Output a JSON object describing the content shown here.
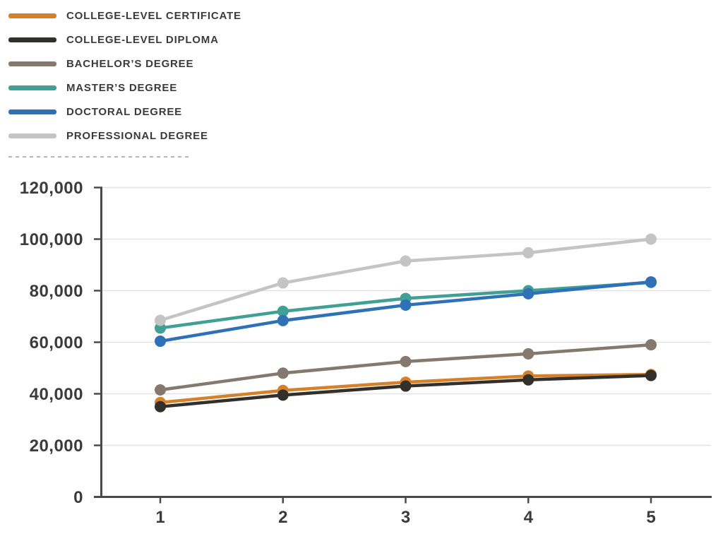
{
  "legend": {
    "items": [
      {
        "label": "COLLEGE-LEVEL CERTIFICATE",
        "color": "#D5812A"
      },
      {
        "label": "COLLEGE-LEVEL DIPLOMA",
        "color": "#33302C"
      },
      {
        "label": "BACHELOR’S DEGREE",
        "color": "#85796E"
      },
      {
        "label": "MASTER’S DEGREE",
        "color": "#3FA093"
      },
      {
        "label": "DOCTORAL DEGREE",
        "color": "#2E71B6"
      },
      {
        "label": "PROFESSIONAL DEGREE",
        "color": "#C4C4C4"
      }
    ]
  },
  "chart_data": {
    "type": "line",
    "x": [
      1,
      2,
      3,
      4,
      5
    ],
    "xtick_labels": [
      "1",
      "2",
      "3",
      "4",
      "5"
    ],
    "ytick_labels": [
      "0",
      "20,000",
      "40,000",
      "60,000",
      "80,000",
      "100,000",
      "120,000"
    ],
    "ylim": [
      0,
      120000
    ],
    "ytick_step": 20000,
    "grid": "horizontal",
    "legend_position": "top-left",
    "series": [
      {
        "name": "COLLEGE-LEVEL CERTIFICATE",
        "color": "#D5812A",
        "values": [
          36600,
          41300,
          44500,
          46900,
          47500
        ]
      },
      {
        "name": "COLLEGE-LEVEL DIPLOMA",
        "color": "#33302C",
        "values": [
          35000,
          39500,
          43000,
          45400,
          47100
        ]
      },
      {
        "name": "BACHELOR’S DEGREE",
        "color": "#85796E",
        "values": [
          41500,
          48000,
          52500,
          55500,
          59000
        ]
      },
      {
        "name": "MASTER’S DEGREE",
        "color": "#3FA093",
        "values": [
          65500,
          72000,
          77000,
          80000,
          83200
        ]
      },
      {
        "name": "DOCTORAL DEGREE",
        "color": "#2E71B6",
        "values": [
          60400,
          68400,
          74400,
          78800,
          83400
        ]
      },
      {
        "name": "PROFESSIONAL DEGREE",
        "color": "#C4C4C4",
        "values": [
          68500,
          83000,
          91500,
          94700,
          100000
        ]
      }
    ]
  },
  "styles": {
    "text_color": "#3B3B3B",
    "axis_color": "#4A4A48",
    "grid_color": "#E4E3E1",
    "separator_color": "#B8B6B4",
    "background": "#FFFFFF"
  }
}
